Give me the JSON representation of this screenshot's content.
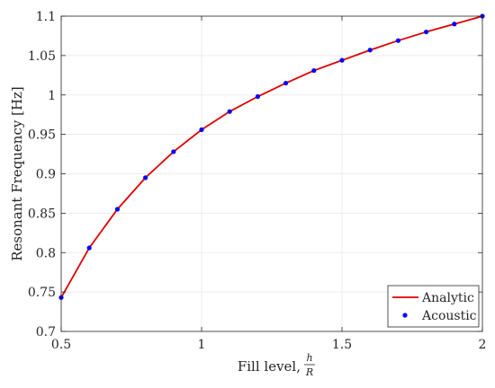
{
  "chart_data": {
    "type": "line",
    "xlabel": "Fill level,",
    "xlabel_fraction": {
      "numerator": "h",
      "denominator": "R"
    },
    "ylabel": "Resonant Frequency [Hz]",
    "xlim": [
      0.5,
      2
    ],
    "ylim": [
      0.7,
      1.1
    ],
    "x_ticks": [
      0.5,
      1,
      1.5,
      2
    ],
    "x_tick_labels": [
      "0.5",
      "1",
      "1.5",
      "2"
    ],
    "y_ticks": [
      0.7,
      0.75,
      0.8,
      0.85,
      0.9,
      0.95,
      1,
      1.05,
      1.1
    ],
    "y_tick_labels": [
      "0.7",
      "0.75",
      "0.8",
      "0.85",
      "0.9",
      "0.95",
      "1",
      "1.05",
      "1.1"
    ],
    "grid": true,
    "legend_position": "bottom-right",
    "series": [
      {
        "name": "Analytic",
        "kind": "line",
        "color": "#e00000",
        "x": [
          0.5,
          0.6,
          0.7,
          0.8,
          0.9,
          1.0,
          1.1,
          1.2,
          1.3,
          1.4,
          1.5,
          1.6,
          1.7,
          1.8,
          1.9,
          2.0
        ],
        "y": [
          0.743,
          0.806,
          0.855,
          0.895,
          0.928,
          0.956,
          0.979,
          0.998,
          1.015,
          1.031,
          1.044,
          1.057,
          1.069,
          1.08,
          1.09,
          1.1
        ]
      },
      {
        "name": "Acoustic",
        "kind": "scatter",
        "color": "#0000ff",
        "x": [
          0.5,
          0.6,
          0.7,
          0.8,
          0.9,
          1.0,
          1.1,
          1.2,
          1.3,
          1.4,
          1.5,
          1.6,
          1.7,
          1.8,
          1.9,
          2.0
        ],
        "y": [
          0.743,
          0.806,
          0.855,
          0.895,
          0.928,
          0.956,
          0.979,
          0.998,
          1.015,
          1.031,
          1.044,
          1.057,
          1.069,
          1.08,
          1.09,
          1.1
        ]
      }
    ]
  }
}
